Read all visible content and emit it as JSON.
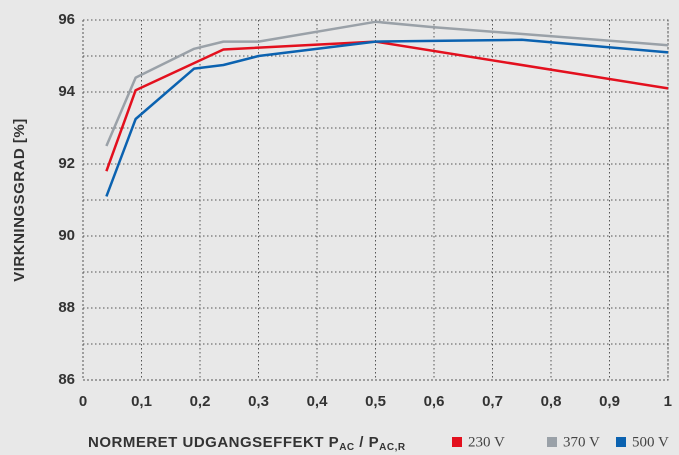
{
  "chart_data": {
    "type": "line",
    "y_label": "VIRKNINGSGRAD [%]",
    "x_label_parts": [
      "NORMERET UDGANGSEFFEKT P",
      "AC",
      " / P",
      "AC,R"
    ],
    "xlim": [
      0,
      1
    ],
    "ylim": [
      86,
      96
    ],
    "xticks": [
      0,
      {
        "value": 0.1,
        "label": "0,1"
      },
      {
        "value": 0.2,
        "label": "0,2"
      },
      {
        "value": 0.3,
        "label": "0,3"
      },
      {
        "value": 0.4,
        "label": "0,4"
      },
      {
        "value": 0.5,
        "label": "0,5"
      },
      {
        "value": 0.6,
        "label": "0,6"
      },
      {
        "value": 0.7,
        "label": "0,7"
      },
      {
        "value": 0.8,
        "label": "0,8"
      },
      {
        "value": 0.9,
        "label": "0,9"
      },
      1
    ],
    "yticks": [
      86,
      88,
      90,
      92,
      94,
      96
    ],
    "y_minor_ticks": [
      87,
      89,
      91,
      93,
      95
    ],
    "grid": true,
    "series": [
      {
        "name": "230 V",
        "color": "#e3101e",
        "x": [
          0.04,
          0.09,
          0.24,
          0.5,
          1.0
        ],
        "values": [
          91.8,
          94.05,
          95.18,
          95.4,
          94.1
        ]
      },
      {
        "name": "370 V",
        "color": "#9aa1a8",
        "x": [
          0.04,
          0.09,
          0.19,
          0.24,
          0.3,
          0.5,
          0.6,
          1.0
        ],
        "values": [
          92.5,
          94.4,
          95.2,
          95.4,
          95.4,
          95.95,
          95.8,
          95.3
        ]
      },
      {
        "name": "500 V",
        "color": "#0b62b0",
        "x": [
          0.04,
          0.09,
          0.19,
          0.24,
          0.3,
          0.5,
          0.75,
          1.0
        ],
        "values": [
          91.1,
          93.25,
          94.65,
          94.75,
          95.0,
          95.4,
          95.45,
          95.1
        ]
      }
    ]
  }
}
